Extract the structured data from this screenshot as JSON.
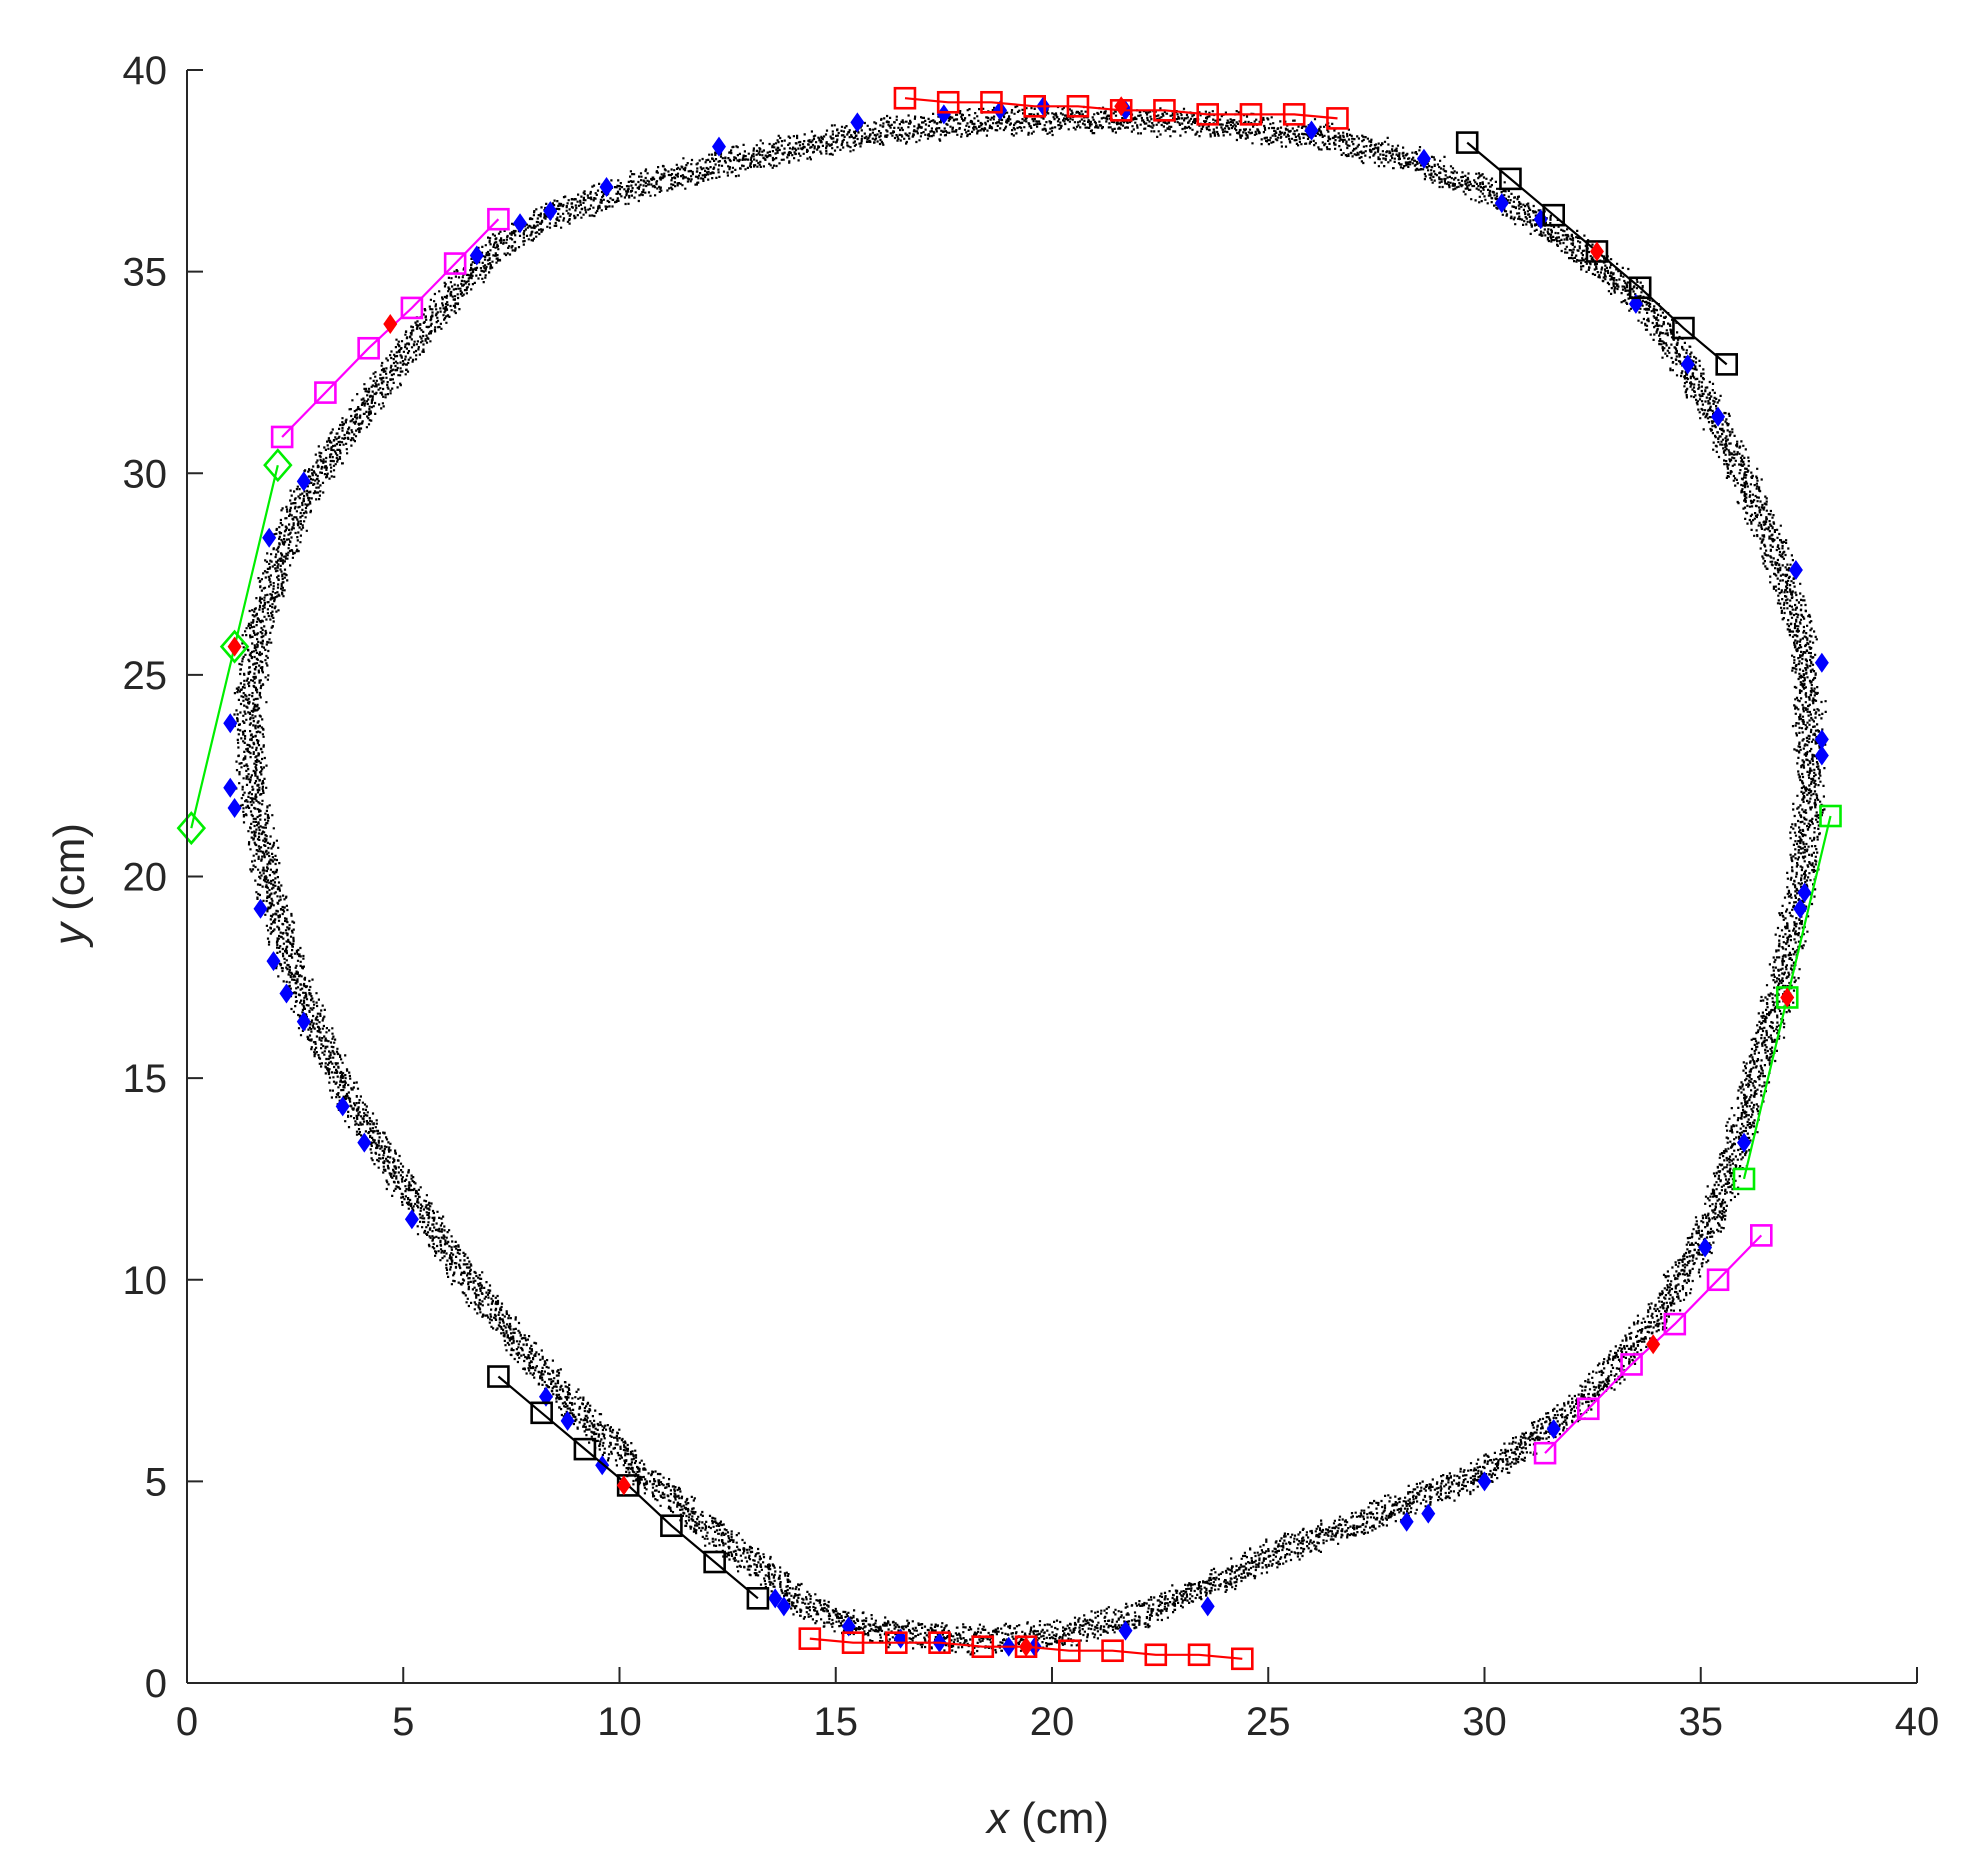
{
  "chart_data": {
    "type": "scatter",
    "xlabel": {
      "var": "x",
      "unit": " (cm)"
    },
    "ylabel": {
      "var": "y",
      "unit": " (cm)"
    },
    "xlim": [
      0,
      40
    ],
    "ylim": [
      0,
      40
    ],
    "xticks": [
      "0",
      "5",
      "10",
      "15",
      "20",
      "25",
      "30",
      "35",
      "40"
    ],
    "yticks": [
      "0",
      "5",
      "10",
      "15",
      "20",
      "25",
      "30",
      "35",
      "40"
    ],
    "grid": false,
    "colors": {
      "trajectory": "#000000",
      "blue_markers": "#0000ff",
      "red_markers": "#ff0000",
      "black_squares": "#000000",
      "magenta_squares": "#ff00ff",
      "red_squares": "#ff0000",
      "green_markers": "#00ee00",
      "axis": "#262626"
    },
    "trajectory_outline": [
      [
        20.0,
        38.8
      ],
      [
        23.5,
        38.7
      ],
      [
        26.2,
        38.4
      ],
      [
        28.5,
        37.7
      ],
      [
        30.3,
        36.9
      ],
      [
        31.7,
        35.9
      ],
      [
        32.9,
        35.0
      ],
      [
        33.9,
        33.9
      ],
      [
        34.7,
        32.6
      ],
      [
        35.4,
        31.2
      ],
      [
        36.1,
        29.6
      ],
      [
        36.8,
        27.8
      ],
      [
        37.3,
        26.0
      ],
      [
        37.5,
        24.0
      ],
      [
        37.5,
        22.0
      ],
      [
        37.3,
        20.0
      ],
      [
        37.0,
        18.0
      ],
      [
        36.5,
        16.0
      ],
      [
        36.0,
        14.0
      ],
      [
        35.5,
        12.3
      ],
      [
        34.9,
        10.8
      ],
      [
        34.1,
        9.3
      ],
      [
        33.1,
        8.0
      ],
      [
        31.8,
        6.6
      ],
      [
        30.2,
        5.4
      ],
      [
        28.5,
        4.6
      ],
      [
        26.8,
        3.9
      ],
      [
        25.0,
        3.2
      ],
      [
        23.5,
        2.4
      ],
      [
        22.0,
        1.7
      ],
      [
        20.0,
        1.2
      ],
      [
        18.0,
        1.1
      ],
      [
        16.0,
        1.3
      ],
      [
        14.5,
        1.8
      ],
      [
        13.2,
        2.9
      ],
      [
        11.8,
        4.0
      ],
      [
        10.4,
        5.3
      ],
      [
        9.0,
        6.8
      ],
      [
        7.7,
        8.4
      ],
      [
        6.5,
        10.0
      ],
      [
        5.4,
        11.7
      ],
      [
        4.4,
        13.3
      ],
      [
        3.5,
        14.9
      ],
      [
        2.8,
        16.6
      ],
      [
        2.2,
        18.4
      ],
      [
        1.8,
        20.3
      ],
      [
        1.5,
        22.2
      ],
      [
        1.4,
        24.0
      ],
      [
        1.6,
        25.9
      ],
      [
        2.0,
        27.6
      ],
      [
        2.6,
        29.3
      ],
      [
        3.5,
        30.8
      ],
      [
        4.6,
        32.4
      ],
      [
        5.8,
        34.1
      ],
      [
        7.0,
        35.5
      ],
      [
        8.4,
        36.4
      ],
      [
        10.2,
        37.1
      ],
      [
        12.0,
        37.6
      ],
      [
        14.0,
        38.1
      ],
      [
        16.0,
        38.5
      ],
      [
        18.0,
        38.7
      ],
      [
        20.0,
        38.8
      ]
    ],
    "blue_markers": [
      [
        15.5,
        38.7
      ],
      [
        17.5,
        38.9
      ],
      [
        18.8,
        39.0
      ],
      [
        19.8,
        39.1
      ],
      [
        21.7,
        39.0
      ],
      [
        26.0,
        38.5
      ],
      [
        28.6,
        37.8
      ],
      [
        30.4,
        36.7
      ],
      [
        31.3,
        36.3
      ],
      [
        33.5,
        34.2
      ],
      [
        34.7,
        32.7
      ],
      [
        35.4,
        31.4
      ],
      [
        37.2,
        27.6
      ],
      [
        37.8,
        25.3
      ],
      [
        37.8,
        23.4
      ],
      [
        37.8,
        23.0
      ],
      [
        37.4,
        19.6
      ],
      [
        37.3,
        19.2
      ],
      [
        36.0,
        13.4
      ],
      [
        35.1,
        10.8
      ],
      [
        31.6,
        6.3
      ],
      [
        30.0,
        5.0
      ],
      [
        28.7,
        4.2
      ],
      [
        28.2,
        4.0
      ],
      [
        23.6,
        1.9
      ],
      [
        21.7,
        1.3
      ],
      [
        19.6,
        0.9
      ],
      [
        19.0,
        0.9
      ],
      [
        17.4,
        1.0
      ],
      [
        16.5,
        1.1
      ],
      [
        15.3,
        1.4
      ],
      [
        13.8,
        1.9
      ],
      [
        13.6,
        2.1
      ],
      [
        9.6,
        5.4
      ],
      [
        8.8,
        6.5
      ],
      [
        8.3,
        7.1
      ],
      [
        5.2,
        11.5
      ],
      [
        4.1,
        13.4
      ],
      [
        3.6,
        14.3
      ],
      [
        2.7,
        16.4
      ],
      [
        2.3,
        17.1
      ],
      [
        2.0,
        17.9
      ],
      [
        1.7,
        19.2
      ],
      [
        1.1,
        21.7
      ],
      [
        1.0,
        22.2
      ],
      [
        1.0,
        23.8
      ],
      [
        1.9,
        28.4
      ],
      [
        2.7,
        29.8
      ],
      [
        6.7,
        35.4
      ],
      [
        7.7,
        36.2
      ],
      [
        8.4,
        36.5
      ],
      [
        9.7,
        37.1
      ],
      [
        12.3,
        38.1
      ]
    ],
    "red_markers": [
      [
        4.7,
        33.7
      ],
      [
        21.6,
        39.1
      ],
      [
        32.6,
        35.5
      ],
      [
        1.1,
        25.7
      ],
      [
        37.0,
        17.0
      ],
      [
        33.9,
        8.4
      ],
      [
        19.4,
        0.9
      ],
      [
        10.1,
        4.9
      ]
    ],
    "series": [
      {
        "color": "#000000",
        "marker": "square",
        "points": [
          [
            29.6,
            38.2
          ],
          [
            30.6,
            37.3
          ],
          [
            31.6,
            36.4
          ],
          [
            32.6,
            35.5
          ],
          [
            33.6,
            34.6
          ],
          [
            34.6,
            33.6
          ],
          [
            35.6,
            32.7
          ]
        ]
      },
      {
        "color": "#000000",
        "marker": "square",
        "points": [
          [
            7.2,
            7.6
          ],
          [
            8.2,
            6.7
          ],
          [
            9.2,
            5.8
          ],
          [
            10.2,
            4.9
          ],
          [
            11.2,
            3.9
          ],
          [
            12.2,
            3.0
          ],
          [
            13.2,
            2.1
          ]
        ]
      },
      {
        "color": "#ff00ff",
        "marker": "square",
        "points": [
          [
            2.2,
            30.9
          ],
          [
            3.2,
            32.0
          ],
          [
            4.2,
            33.1
          ],
          [
            5.2,
            34.1
          ],
          [
            6.2,
            35.2
          ],
          [
            7.2,
            36.3
          ]
        ]
      },
      {
        "color": "#ff00ff",
        "marker": "square",
        "points": [
          [
            31.4,
            5.7
          ],
          [
            32.4,
            6.8
          ],
          [
            33.4,
            7.9
          ],
          [
            34.4,
            8.9
          ],
          [
            35.4,
            10.0
          ],
          [
            36.4,
            11.1
          ]
        ]
      },
      {
        "color": "#ff0000",
        "marker": "square",
        "points": [
          [
            16.6,
            39.3
          ],
          [
            17.6,
            39.2
          ],
          [
            18.6,
            39.2
          ],
          [
            19.6,
            39.1
          ],
          [
            20.6,
            39.1
          ],
          [
            21.6,
            39.0
          ],
          [
            22.6,
            39.0
          ],
          [
            23.6,
            38.9
          ],
          [
            24.6,
            38.9
          ],
          [
            25.6,
            38.9
          ],
          [
            26.6,
            38.8
          ]
        ]
      },
      {
        "color": "#ff0000",
        "marker": "square",
        "points": [
          [
            14.4,
            1.1
          ],
          [
            15.4,
            1.0
          ],
          [
            16.4,
            1.0
          ],
          [
            17.4,
            1.0
          ],
          [
            18.4,
            0.9
          ],
          [
            19.4,
            0.9
          ],
          [
            20.4,
            0.8
          ],
          [
            21.4,
            0.8
          ],
          [
            22.4,
            0.7
          ],
          [
            23.4,
            0.7
          ],
          [
            24.4,
            0.6
          ]
        ]
      },
      {
        "color": "#00ee00",
        "marker": "diamond",
        "points": [
          [
            0.1,
            21.2
          ],
          [
            1.1,
            25.7
          ],
          [
            2.1,
            30.2
          ]
        ]
      },
      {
        "color": "#00ee00",
        "marker": "square",
        "points": [
          [
            36.0,
            12.5
          ],
          [
            37.0,
            17.0
          ],
          [
            38.0,
            21.5
          ]
        ]
      }
    ]
  }
}
